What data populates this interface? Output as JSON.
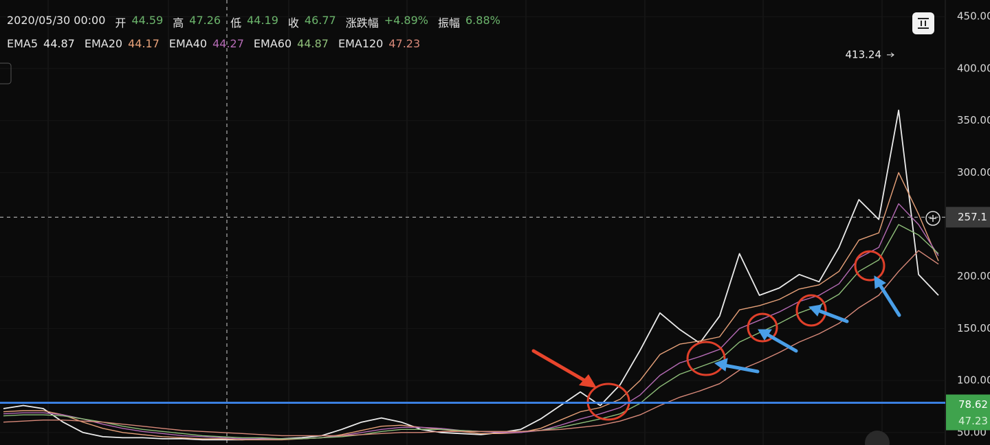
{
  "chart_data": {
    "type": "line",
    "header": {
      "datetime": "2020/05/30 00:00",
      "fields": [
        {
          "label": "开",
          "value": 44.59
        },
        {
          "label": "高",
          "value": 47.26
        },
        {
          "label": "低",
          "value": 44.19
        },
        {
          "label": "收",
          "value": 46.77
        },
        {
          "label": "涨跌幅",
          "value": 4.89,
          "value_label": "+4.89%"
        },
        {
          "label": "振幅",
          "value": 6.88,
          "value_label": "6.88%"
        }
      ]
    },
    "ylim": [
      38,
      466
    ],
    "yticks": [
      {
        "value": 50,
        "label": "50.00"
      },
      {
        "value": 100,
        "label": "100.00"
      },
      {
        "value": 150,
        "label": "150.00"
      },
      {
        "value": 200,
        "label": "200.00"
      },
      {
        "value": 300,
        "label": "300.00"
      },
      {
        "value": 350,
        "label": "350.00"
      },
      {
        "value": 400,
        "label": "400.00"
      },
      {
        "value": 450,
        "label": "450.00"
      }
    ],
    "grid": true,
    "peak_label": 413.24,
    "crosshair_y": 257.1,
    "level_line": 78.62,
    "price_tags": [
      78.62,
      47.23
    ],
    "series": [
      {
        "name": "EMA5",
        "legend_value": 44.87,
        "color": "#ececec",
        "values": [
          73,
          76,
          73,
          60,
          50,
          46,
          45,
          45,
          44,
          44,
          43,
          43,
          43,
          44,
          44,
          45,
          47,
          53,
          60,
          64,
          60,
          53,
          50,
          49,
          48,
          50,
          53,
          63,
          76,
          89,
          76,
          96,
          129,
          165,
          149,
          136,
          162,
          222,
          182,
          189,
          202,
          195,
          228,
          274,
          255,
          360,
          202,
          182
        ]
      },
      {
        "name": "EMA20",
        "legend_value": 44.17,
        "color": "#e8a27a",
        "values": [
          70,
          71,
          71,
          67,
          60,
          54,
          50,
          48,
          46,
          45,
          44,
          44,
          43,
          43,
          43,
          44,
          45,
          48,
          52,
          56,
          57,
          55,
          53,
          51,
          49,
          49,
          50,
          54,
          62,
          70,
          74,
          82,
          100,
          125,
          135,
          138,
          142,
          168,
          172,
          178,
          188,
          192,
          205,
          235,
          242,
          300,
          260,
          215
        ]
      },
      {
        "name": "EMA40",
        "legend_value": 44.27,
        "color": "#b56bb5",
        "values": [
          68,
          69,
          69,
          67,
          63,
          58,
          54,
          51,
          49,
          47,
          46,
          45,
          44,
          44,
          44,
          44,
          45,
          47,
          50,
          53,
          55,
          55,
          54,
          52,
          51,
          50,
          50,
          52,
          57,
          63,
          68,
          74,
          86,
          105,
          117,
          123,
          130,
          150,
          158,
          166,
          176,
          182,
          193,
          218,
          228,
          270,
          250,
          220
        ]
      },
      {
        "name": "EMA60",
        "legend_value": 44.87,
        "color": "#8fbf7a",
        "values": [
          66,
          67,
          67,
          66,
          63,
          60,
          56,
          53,
          51,
          49,
          47,
          46,
          45,
          45,
          44,
          44,
          45,
          46,
          48,
          51,
          53,
          53,
          53,
          52,
          51,
          51,
          51,
          52,
          55,
          59,
          63,
          68,
          78,
          94,
          106,
          113,
          120,
          137,
          146,
          155,
          165,
          172,
          183,
          205,
          216,
          250,
          240,
          222
        ]
      },
      {
        "name": "EMA120",
        "legend_value": 47.23,
        "color": "#d98a7a",
        "values": [
          60,
          61,
          62,
          62,
          61,
          60,
          58,
          56,
          54,
          52,
          51,
          50,
          49,
          48,
          47,
          47,
          47,
          47,
          48,
          49,
          50,
          50,
          51,
          51,
          51,
          51,
          51,
          52,
          53,
          55,
          57,
          61,
          67,
          76,
          84,
          90,
          97,
          110,
          118,
          127,
          137,
          145,
          155,
          170,
          182,
          205,
          225,
          212
        ]
      }
    ]
  }
}
